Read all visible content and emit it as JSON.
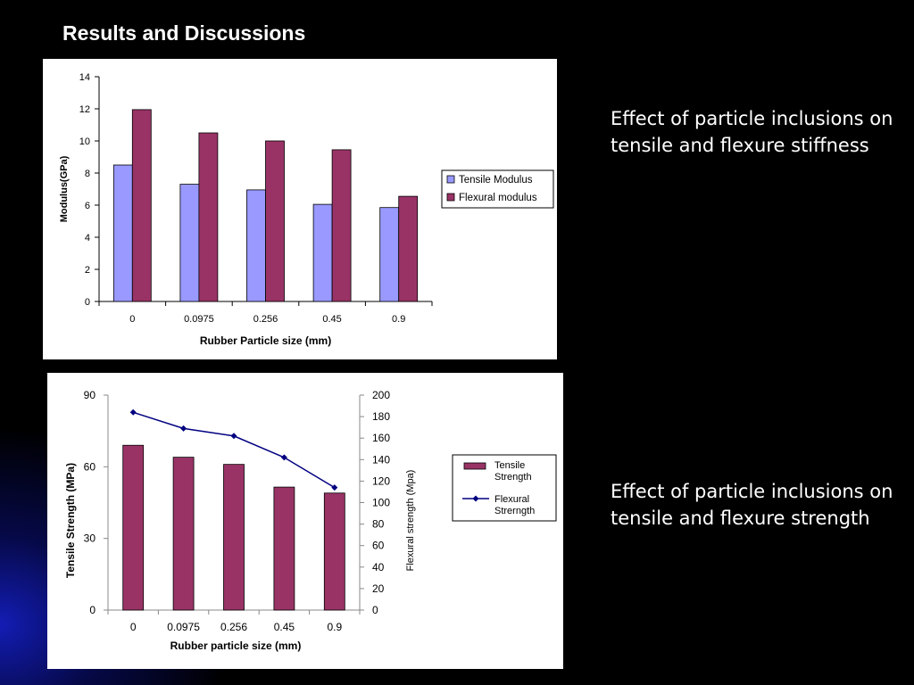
{
  "slide": {
    "title": "Results and Discussions",
    "captions": [
      "Effect  of particle inclusions on tensile and flexure stiffness",
      "Effect  of particle inclusions on tensile and flexure strength"
    ]
  },
  "colors": {
    "background": "#000000",
    "tensile_modulus": "#9999ff",
    "flexural_modulus": "#993366",
    "tensile_strength": "#993366",
    "flexural_strength": "#000080"
  },
  "chart_data": [
    {
      "type": "bar",
      "xlabel": "Rubber Particle size (mm)",
      "ylabel": "Modulus(GPa)",
      "ylim": [
        0,
        14
      ],
      "yticks": [
        0,
        2,
        4,
        6,
        8,
        10,
        12,
        14
      ],
      "categories": [
        "0",
        "0.0975",
        "0.256",
        "0.45",
        "0.9"
      ],
      "series": [
        {
          "name": "Tensile Modulus",
          "values": [
            8.5,
            7.3,
            6.95,
            6.05,
            5.85
          ]
        },
        {
          "name": "Flexural modulus",
          "values": [
            11.95,
            10.5,
            10.0,
            9.45,
            6.55
          ]
        }
      ],
      "legend": "right",
      "grid": false
    },
    {
      "type": "bar",
      "xlabel": "Rubber particle size (mm)",
      "ylabel": "Tensile Strength (MPa)",
      "ylim": [
        0,
        90
      ],
      "yticks": [
        0,
        30,
        60,
        90
      ],
      "y2label": "Flexural strength (Mpa)",
      "y2lim": [
        0,
        200
      ],
      "y2ticks": [
        0,
        20,
        40,
        60,
        80,
        100,
        120,
        140,
        160,
        180,
        200
      ],
      "categories": [
        "0",
        "0.0975",
        "0.256",
        "0.45",
        "0.9"
      ],
      "series": [
        {
          "name": "Tensile Strength",
          "type": "bar",
          "axis": "left",
          "values": [
            69,
            64,
            61,
            51.5,
            49
          ]
        },
        {
          "name": "Flexural Strerngth",
          "type": "line",
          "axis": "right",
          "values": [
            184,
            169,
            162,
            142,
            114
          ]
        }
      ],
      "legend": "right",
      "grid": false
    }
  ]
}
